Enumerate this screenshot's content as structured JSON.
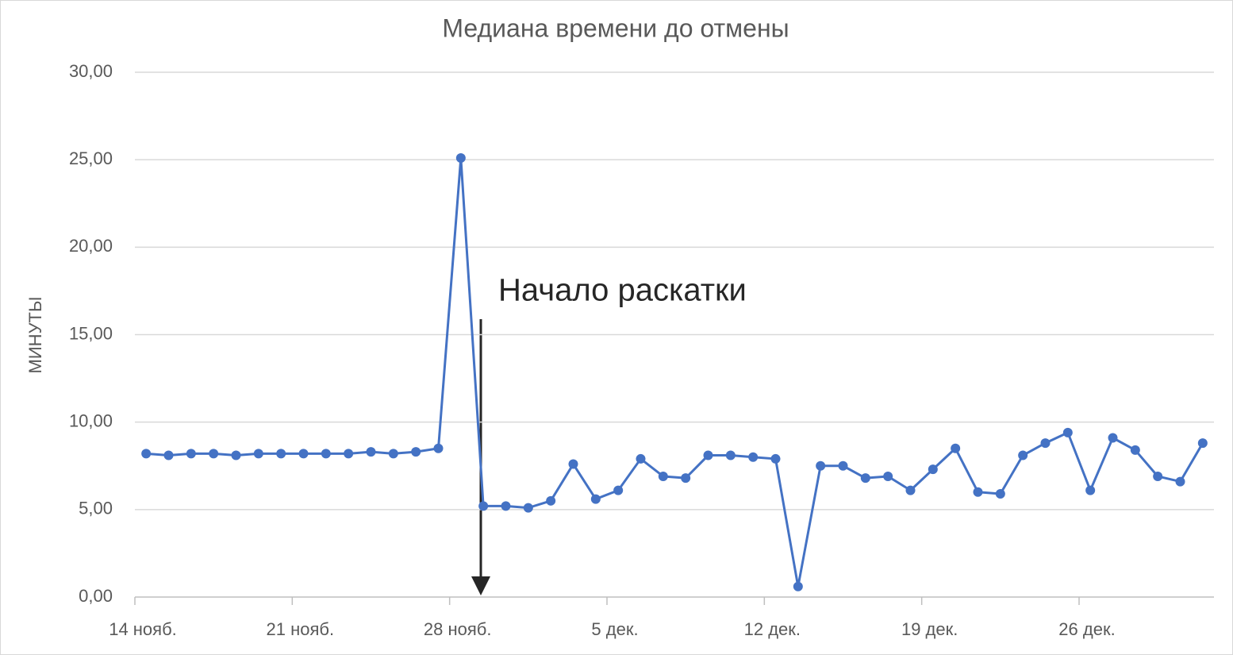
{
  "chart_data": {
    "type": "line",
    "title": "Медиана времени до отмены",
    "y_label": "МИНУТЫ",
    "annotation": "Начало раскатки",
    "categories": [
      "14 нояб.",
      null,
      null,
      null,
      null,
      null,
      null,
      "21 нояб.",
      null,
      null,
      null,
      null,
      null,
      null,
      "28 нояб.",
      null,
      null,
      null,
      null,
      null,
      null,
      "5 дек.",
      null,
      null,
      null,
      null,
      null,
      null,
      "12 дек.",
      null,
      null,
      null,
      null,
      null,
      null,
      "19 дек.",
      null,
      null,
      null,
      null,
      null,
      null,
      "26 дек.",
      null,
      null,
      null,
      null,
      null
    ],
    "series": [
      {
        "name": "Медиана",
        "color": "#4472c4",
        "values": [
          8.2,
          8.1,
          8.2,
          8.2,
          8.1,
          8.2,
          8.2,
          8.2,
          8.2,
          8.2,
          8.3,
          8.2,
          8.3,
          8.5,
          25.1,
          5.2,
          5.2,
          5.1,
          5.5,
          7.6,
          5.6,
          6.1,
          7.9,
          6.9,
          6.8,
          8.1,
          8.1,
          8.0,
          7.9,
          0.6,
          7.5,
          7.5,
          6.8,
          6.9,
          6.1,
          7.3,
          8.5,
          6.0,
          5.9,
          8.1,
          8.8,
          9.4,
          6.1,
          9.1,
          8.4,
          6.9,
          6.6,
          8.8
        ]
      }
    ],
    "ylim": [
      0,
      30
    ],
    "yticks": [
      {
        "value": 0,
        "label": "0,00"
      },
      {
        "value": 5,
        "label": "5,00"
      },
      {
        "value": 10,
        "label": "10,00"
      },
      {
        "value": 15,
        "label": "15,00"
      },
      {
        "value": 20,
        "label": "20,00"
      },
      {
        "value": 25,
        "label": "25,00"
      },
      {
        "value": 30,
        "label": "30,00"
      }
    ],
    "grid": true
  }
}
